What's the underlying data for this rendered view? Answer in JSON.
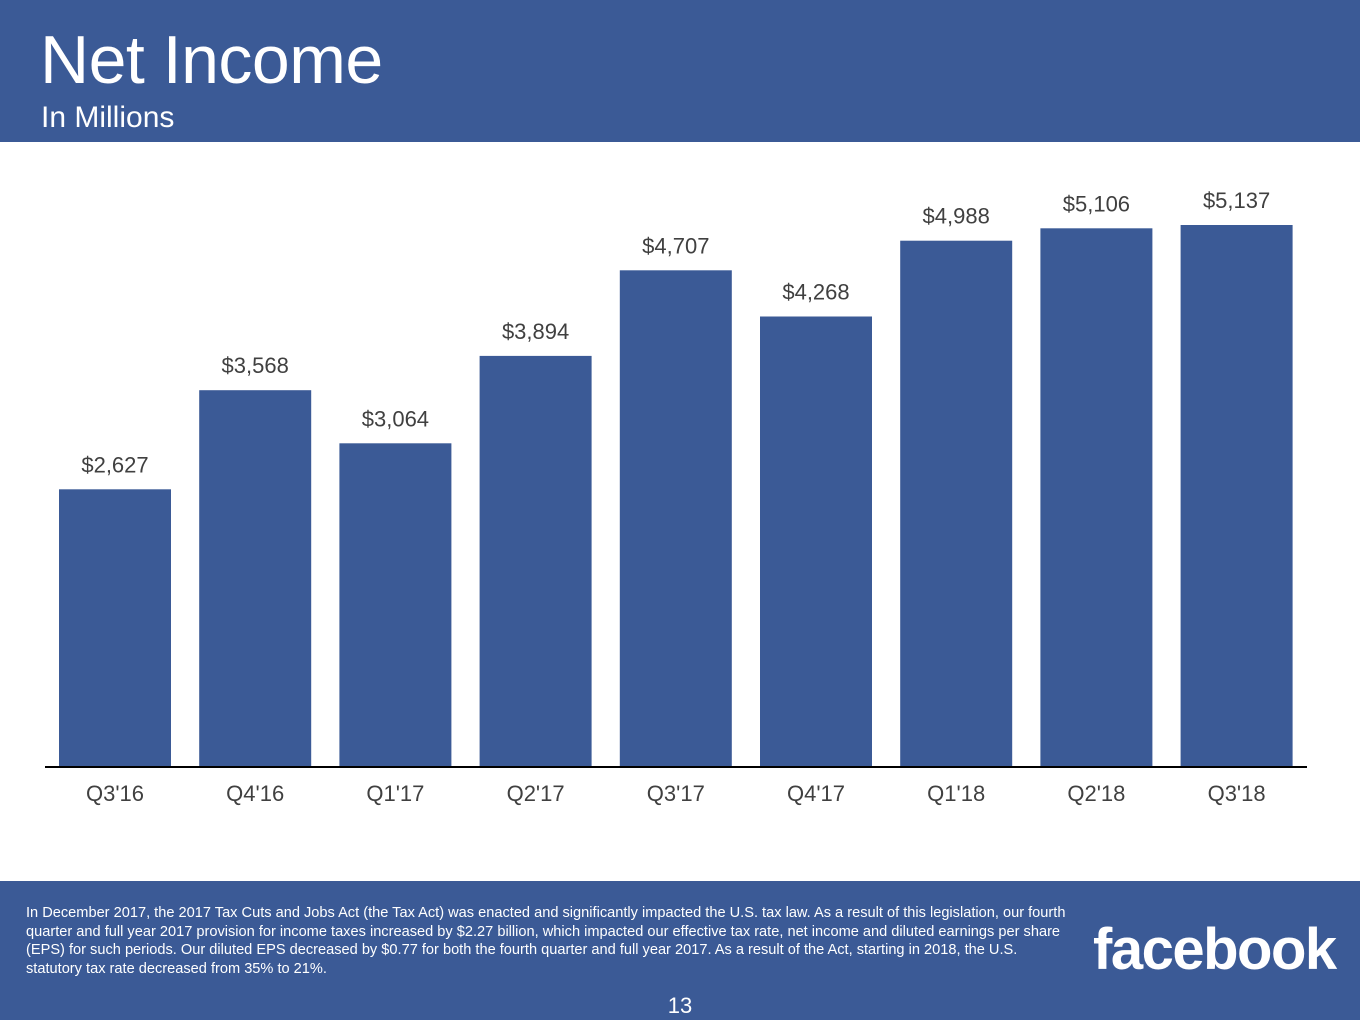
{
  "slide": {
    "title": "Net Income",
    "subtitle": "In Millions",
    "footnote": "In December 2017, the 2017 Tax Cuts and Jobs Act (the Tax Act) was enacted and significantly impacted the U.S. tax law. As a result of this legislation, our fourth quarter and full year 2017 provision for income taxes increased by $2.27 billion, which impacted our effective tax rate, net income and diluted earnings per share (EPS) for such periods. Our diluted EPS decreased by $0.77 for both the fourth quarter and full year 2017. As a result of the Act, starting in 2018, the U.S. statutory tax rate decreased from 35% to 21%.",
    "logo_text": "facebook",
    "page_number": "13"
  },
  "colors": {
    "brand": "#3b5a96",
    "bar": "#3b5a96",
    "label_text": "#404040",
    "axis": "#000000"
  },
  "chart_data": {
    "type": "bar",
    "title": "Net Income",
    "subtitle": "In Millions",
    "categories": [
      "Q3'16",
      "Q4'16",
      "Q1'17",
      "Q2'17",
      "Q3'17",
      "Q4'17",
      "Q1'18",
      "Q2'18",
      "Q3'18"
    ],
    "values": [
      2627,
      3568,
      3064,
      3894,
      4707,
      4268,
      4988,
      5106,
      5137
    ],
    "data_labels": [
      "$2,627",
      "$3,568",
      "$3,064",
      "$3,894",
      "$4,707",
      "$4,268",
      "$4,988",
      "$5,106",
      "$5,137"
    ],
    "ylim": [
      0,
      5137
    ],
    "grid": false,
    "legend": "none"
  }
}
